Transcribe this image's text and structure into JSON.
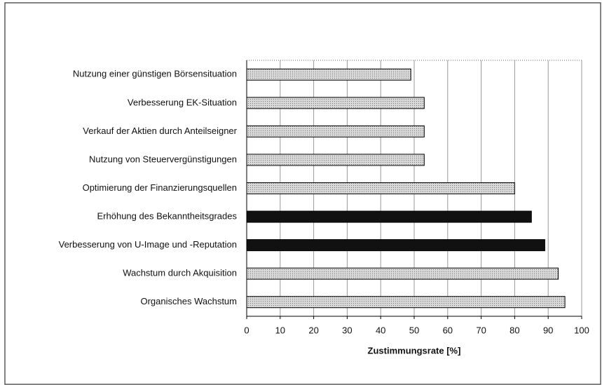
{
  "chart_data": {
    "type": "bar",
    "orientation": "horizontal",
    "categories": [
      "Nutzung einer günstigen Börsensituation",
      "Verbesserung EK-Situation",
      "Verkauf der Aktien durch Anteilseigner",
      "Nutzung von Steuervergünstigungen",
      "Optimierung der Finanzierungsquellen",
      "Erhöhung des Bekanntheitsgrades",
      "Verbesserung von U-Image und -Reputation",
      "Wachstum durch Akquisition",
      "Organisches Wachstum"
    ],
    "values": [
      49,
      53,
      53,
      53,
      80,
      85,
      89,
      93,
      95
    ],
    "colors": [
      "#c8c8c8",
      "#c8c8c8",
      "#c8c8c8",
      "#c8c8c8",
      "#c8c8c8",
      "#111111",
      "#111111",
      "#c8c8c8",
      "#c8c8c8"
    ],
    "x_label": "Zustimmungsrate [%]",
    "xlim": [
      0,
      100
    ],
    "xticks": [
      0,
      10,
      20,
      30,
      40,
      50,
      60,
      70,
      80,
      90,
      100
    ],
    "grid": true
  }
}
